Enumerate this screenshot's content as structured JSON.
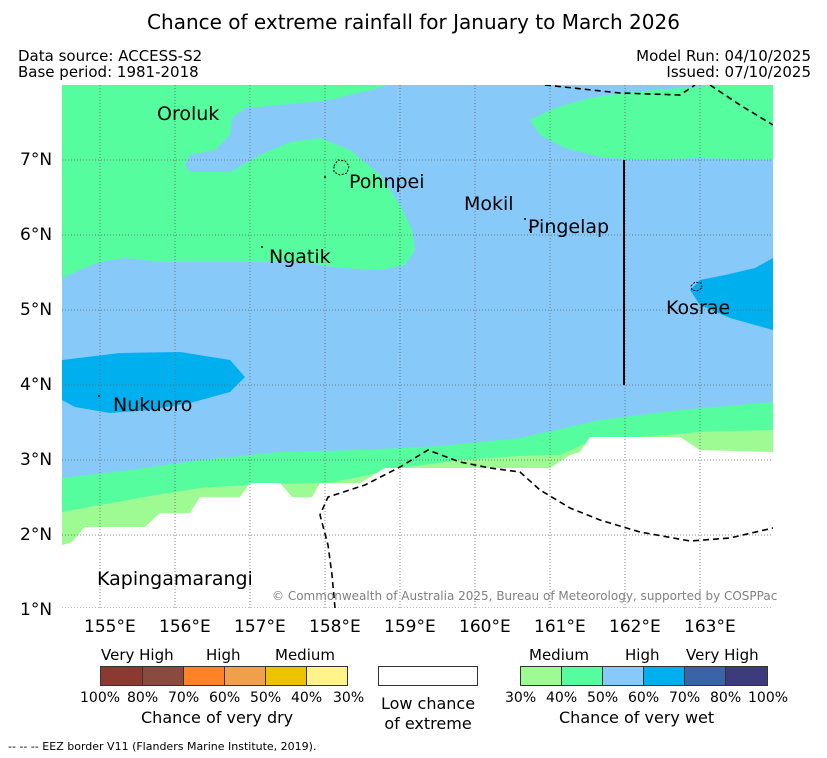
{
  "title": "Chance of extreme rainfall for January to March 2026",
  "header": {
    "data_source": "Data source: ACCESS-S2",
    "base_period": "Base period: 1981-2018",
    "model_run": "Model Run: 04/10/2025",
    "issued": "Issued: 07/10/2025"
  },
  "map": {
    "lon_ticks": [
      "155°E",
      "156°E",
      "157°E",
      "158°E",
      "159°E",
      "160°E",
      "161°E",
      "162°E",
      "163°E"
    ],
    "lat_ticks": [
      "1°N",
      "2°N",
      "3°N",
      "4°N",
      "5°N",
      "6°N",
      "7°N"
    ],
    "places": {
      "oroluk": "Oroluk",
      "pohnpei": "Pohnpei",
      "mokil": "Mokil",
      "pingelap": "Pingelap",
      "ngatik": "Ngatik",
      "kosrae": "Kosrae",
      "nukuoro": "Nukuoro",
      "kapingamarangi": "Kapingamarangi"
    },
    "copyright": "© Commonwealth of Australia 2025, Bureau of Meteorology, supported by COSPPac"
  },
  "legend": {
    "dry": {
      "groups": [
        "Very High",
        "High",
        "Medium"
      ],
      "ticks": [
        "100%",
        "80%",
        "70%",
        "60%",
        "50%",
        "40%",
        "30%"
      ],
      "caption": "Chance of very dry",
      "colors": [
        "#8b3a32",
        "#8b4a3e",
        "#ff8227",
        "#f0a04b",
        "#edc200",
        "#fff48a"
      ]
    },
    "low": {
      "line1": "Low chance",
      "line2": "of extreme"
    },
    "wet": {
      "groups": [
        "Medium",
        "High",
        "Very High"
      ],
      "ticks": [
        "30%",
        "40%",
        "50%",
        "60%",
        "70%",
        "80%",
        "100%"
      ],
      "caption": "Chance of very wet",
      "colors": [
        "#9efb94",
        "#56fd9f",
        "#87cafa",
        "#00b0ee",
        "#3a63a8",
        "#3c3b7b"
      ]
    }
  },
  "footer": "--  --  -- EEZ border V11 (Flanders Marine Institute, 2019)."
}
